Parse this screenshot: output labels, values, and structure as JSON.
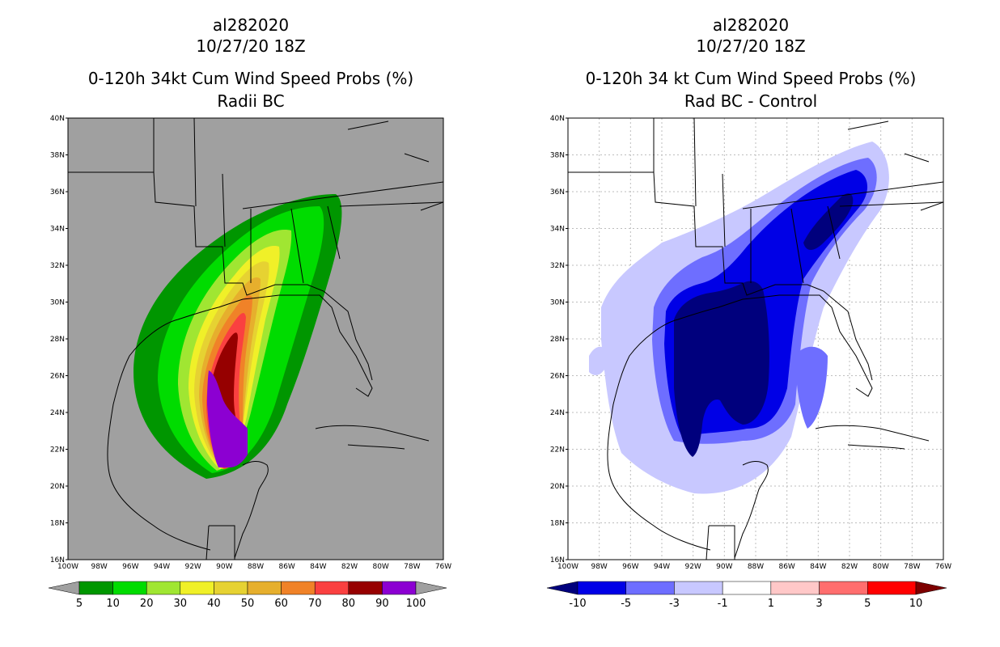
{
  "left": {
    "storm_id": "al282020",
    "datetime": "10/27/20 18Z",
    "product": "0-120h 34kt Cum Wind Speed Probs (%)",
    "subtitle": "Radii BC",
    "colorbar": {
      "labels": [
        "5",
        "10",
        "20",
        "30",
        "40",
        "50",
        "60",
        "70",
        "80",
        "90",
        "100"
      ],
      "colors": [
        "#a0a0a0",
        "#009600",
        "#00dc00",
        "#a0e632",
        "#f0f028",
        "#e6d232",
        "#e6af2d",
        "#f08228",
        "#fa4040",
        "#960000",
        "#8c00d2",
        "#a0a0a0"
      ]
    }
  },
  "right": {
    "storm_id": "al282020",
    "datetime": "10/27/20 18Z",
    "product": "0-120h 34 kt Cum Wind Speed Probs (%)",
    "subtitle": "Rad BC - Control",
    "colorbar": {
      "labels": [
        "-10",
        "-5",
        "-3",
        "-1",
        "1",
        "3",
        "5",
        "10"
      ],
      "colors": [
        "#00007d",
        "#0000e6",
        "#6e6eff",
        "#c8c8ff",
        "#ffffff",
        "#ffc8c8",
        "#ff6e6e",
        "#ff0000",
        "#7d0000"
      ]
    }
  },
  "axes": {
    "lat_labels": [
      "40N",
      "38N",
      "36N",
      "34N",
      "32N",
      "30N",
      "28N",
      "26N",
      "24N",
      "22N",
      "20N",
      "18N",
      "16N"
    ],
    "lon_labels": [
      "100W",
      "98W",
      "96W",
      "94W",
      "92W",
      "90W",
      "88W",
      "86W",
      "84W",
      "82W",
      "80W",
      "78W",
      "76W"
    ],
    "lat_range": [
      16,
      40
    ],
    "lon_range": [
      -100,
      -76
    ]
  },
  "colors": {
    "map_gray": "#a0a0a0",
    "grid": "#bdbdbd"
  }
}
